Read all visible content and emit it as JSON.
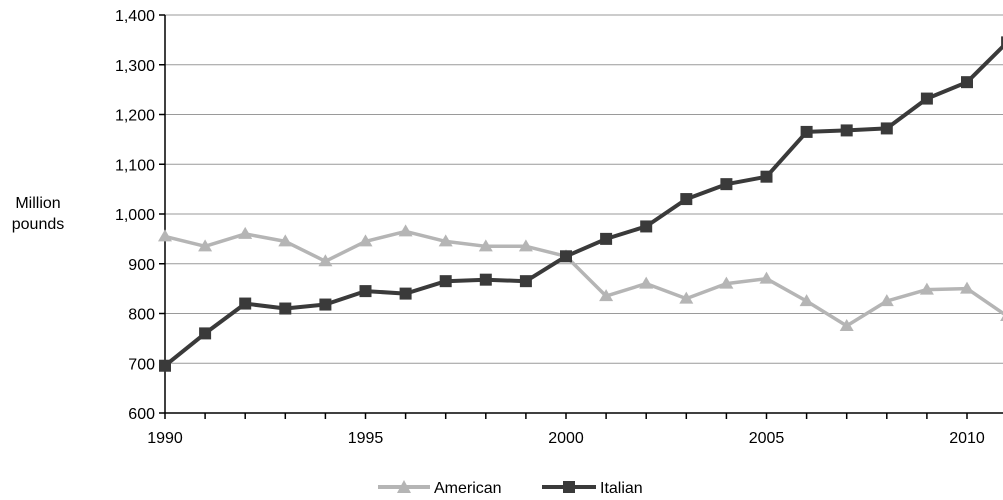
{
  "chart_data": {
    "type": "line",
    "ylabel_lines": [
      "Million",
      "pounds"
    ],
    "x": [
      1990,
      1991,
      1992,
      1993,
      1994,
      1995,
      1996,
      1997,
      1998,
      1999,
      2000,
      2001,
      2002,
      2003,
      2004,
      2005,
      2006,
      2007,
      2008,
      2009,
      2010,
      2011
    ],
    "xlim": [
      1990,
      2011
    ],
    "x_ticks": [
      1990,
      1995,
      2000,
      2005,
      2010
    ],
    "ylim": [
      600,
      1400
    ],
    "y_ticks": [
      600,
      700,
      800,
      900,
      1000,
      1100,
      1200,
      1300,
      1400
    ],
    "y_tick_labels": [
      "600",
      "700",
      "800",
      "900",
      "1,000",
      "1,100",
      "1,200",
      "1,300",
      "1,400"
    ],
    "grid": "horizontal",
    "legend_position": "bottom",
    "series": [
      {
        "name": "American",
        "color": "#b5b5b5",
        "marker": "triangle",
        "values": [
          955,
          935,
          960,
          945,
          905,
          945,
          965,
          945,
          935,
          935,
          915,
          835,
          860,
          830,
          860,
          870,
          825,
          775,
          825,
          848,
          850,
          795
        ]
      },
      {
        "name": "Italian",
        "color": "#3a3a3a",
        "marker": "square",
        "values": [
          695,
          760,
          820,
          810,
          818,
          845,
          840,
          865,
          868,
          865,
          915,
          950,
          975,
          1030,
          1060,
          1075,
          1165,
          1168,
          1172,
          1232,
          1265,
          1345
        ]
      }
    ]
  }
}
